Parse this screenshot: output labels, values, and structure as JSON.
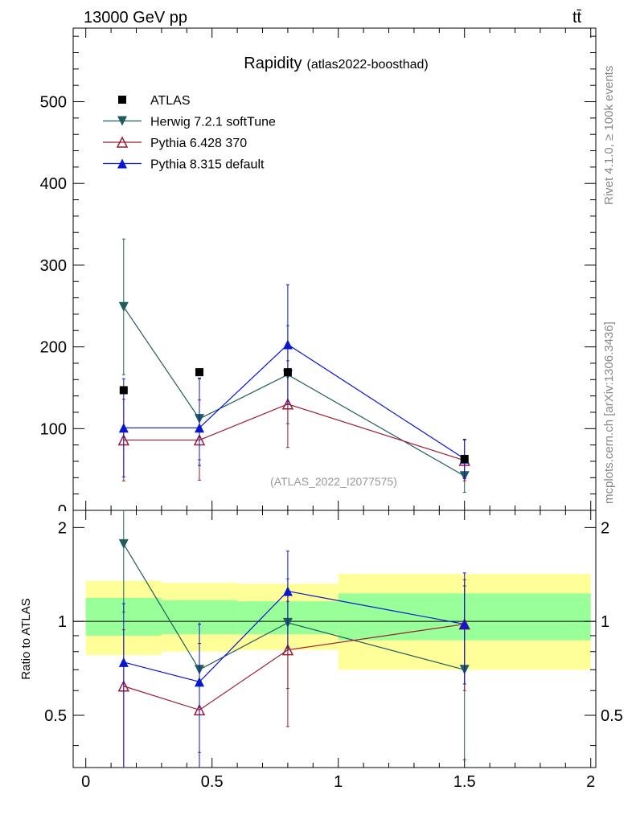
{
  "header": {
    "energy_label": "13000 GeV pp",
    "process_label": "tt̄"
  },
  "side_labels": {
    "rivet": "Rivet 4.1.0, ≥ 100k events",
    "site": "mcplots.cern.ch [arXiv:1306.3436]"
  },
  "chart_data": [
    {
      "type": "scatter",
      "panel": "main",
      "title": "Rapidity",
      "subtitle": "(atlas2022-boosthad)",
      "watermark": "(ATLAS_2022_I2077575)",
      "xlabel": "",
      "ylabel": "",
      "xlim": [
        -0.05,
        2.02
      ],
      "ylim": [
        0,
        590
      ],
      "yticks": [
        0,
        100,
        200,
        300,
        400,
        500
      ],
      "ytick_labels": [
        "0",
        "100",
        "200",
        "300",
        "400",
        "500"
      ],
      "legend_position": "top-left",
      "x": [
        0.15,
        0.45,
        0.8,
        1.5
      ],
      "series": [
        {
          "name": "ATLAS",
          "color": "#000000",
          "marker": "square",
          "line": false,
          "values": [
            147,
            169,
            169,
            63
          ],
          "err_low": [
            0,
            0,
            0,
            0
          ],
          "err_high": [
            0,
            0,
            0,
            0
          ]
        },
        {
          "name": "Herwig 7.2.1 softTune",
          "color": "#1f5c5c",
          "marker": "triangle-down",
          "line": true,
          "values": [
            249,
            112,
            166,
            42
          ],
          "err_low": [
            83,
            50,
            60,
            20
          ],
          "err_high": [
            83,
            50,
            60,
            20
          ]
        },
        {
          "name": "Pythia 6.428 370",
          "color": "#9b1b30",
          "marker": "triangle-up-open",
          "line": true,
          "values": [
            86,
            86,
            130,
            61
          ],
          "err_low": [
            50,
            49,
            53,
            25
          ],
          "err_high": [
            50,
            49,
            53,
            25
          ]
        },
        {
          "name": "Pythia 8.315 default",
          "color": "#0b16d0",
          "marker": "triangle-up",
          "line": true,
          "values": [
            101,
            101,
            203,
            63
          ],
          "err_low": [
            60,
            46,
            73,
            24
          ],
          "err_high": [
            60,
            60,
            73,
            24
          ]
        }
      ]
    },
    {
      "type": "scatter",
      "panel": "ratio",
      "xlabel": "",
      "ylabel": "Ratio to ATLAS",
      "xlim": [
        -0.05,
        2.02
      ],
      "ylim": [
        0.34,
        2.27
      ],
      "yticks": [
        0.5,
        1,
        2
      ],
      "ytick_labels": [
        "0.5",
        "1",
        "2"
      ],
      "xticks": [
        0,
        0.5,
        1,
        1.5,
        2
      ],
      "xtick_labels": [
        "0",
        "0.5",
        "1",
        "1.5",
        "2"
      ],
      "reference_line": 1,
      "bands": [
        {
          "x_range": [
            0,
            0.3
          ],
          "yellow": [
            0.78,
            1.35
          ],
          "green": [
            0.9,
            1.19
          ]
        },
        {
          "x_range": [
            0.3,
            0.6
          ],
          "yellow": [
            0.8,
            1.33
          ],
          "green": [
            0.91,
            1.17
          ]
        },
        {
          "x_range": [
            0.6,
            1.0
          ],
          "yellow": [
            0.81,
            1.32
          ],
          "green": [
            0.91,
            1.16
          ]
        },
        {
          "x_range": [
            1.0,
            2.0
          ],
          "yellow": [
            0.7,
            1.42
          ],
          "green": [
            0.87,
            1.23
          ]
        }
      ],
      "x": [
        0.15,
        0.45,
        0.8,
        1.5
      ],
      "series": [
        {
          "name": "Herwig 7.2.1 softTune",
          "color": "#1f5c5c",
          "marker": "triangle-down",
          "values": [
            1.77,
            0.7,
            0.99,
            0.7
          ],
          "err_low": [
            0.7,
            0.32,
            0.38,
            0.34
          ],
          "err_high": [
            0.55,
            0.3,
            0.38,
            0.6
          ]
        },
        {
          "name": "Pythia 6.428 370",
          "color": "#9b1b30",
          "marker": "triangle-up-open",
          "values": [
            0.62,
            0.52,
            0.81,
            0.98
          ],
          "err_low": [
            0.28,
            0.28,
            0.35,
            0.38
          ],
          "err_high": [
            0.32,
            0.33,
            0.35,
            0.38
          ]
        },
        {
          "name": "Pythia 8.315 default",
          "color": "#0b16d0",
          "marker": "triangle-up",
          "values": [
            0.74,
            0.64,
            1.25,
            0.98
          ],
          "err_low": [
            0.4,
            0.34,
            0.43,
            0.35
          ],
          "err_high": [
            0.4,
            0.34,
            0.43,
            0.45
          ]
        }
      ]
    }
  ]
}
